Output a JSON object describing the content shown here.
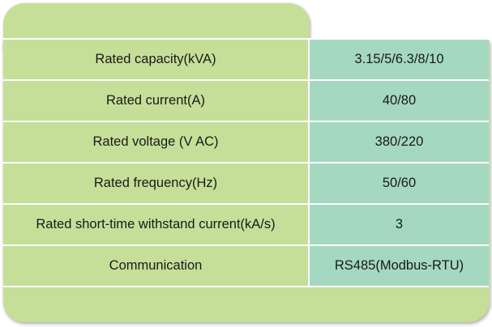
{
  "colors": {
    "panel_green": "#c5df98",
    "value_teal": "#a4d8c1",
    "divider": "#ffffff"
  },
  "spec_table": {
    "rows": [
      {
        "parameter": "Rated capacity(kVA)",
        "value": "3.15/5/6.3/8/10"
      },
      {
        "parameter": "Rated current(A)",
        "value": "40/80"
      },
      {
        "parameter": "Rated voltage (V AC)",
        "value": "380/220"
      },
      {
        "parameter": "Rated frequency(Hz)",
        "value": "50/60"
      },
      {
        "parameter": "Rated short-time withstand current(kA/s)",
        "value": "3"
      },
      {
        "parameter": "Communication",
        "value": "RS485(Modbus-RTU)"
      }
    ]
  }
}
